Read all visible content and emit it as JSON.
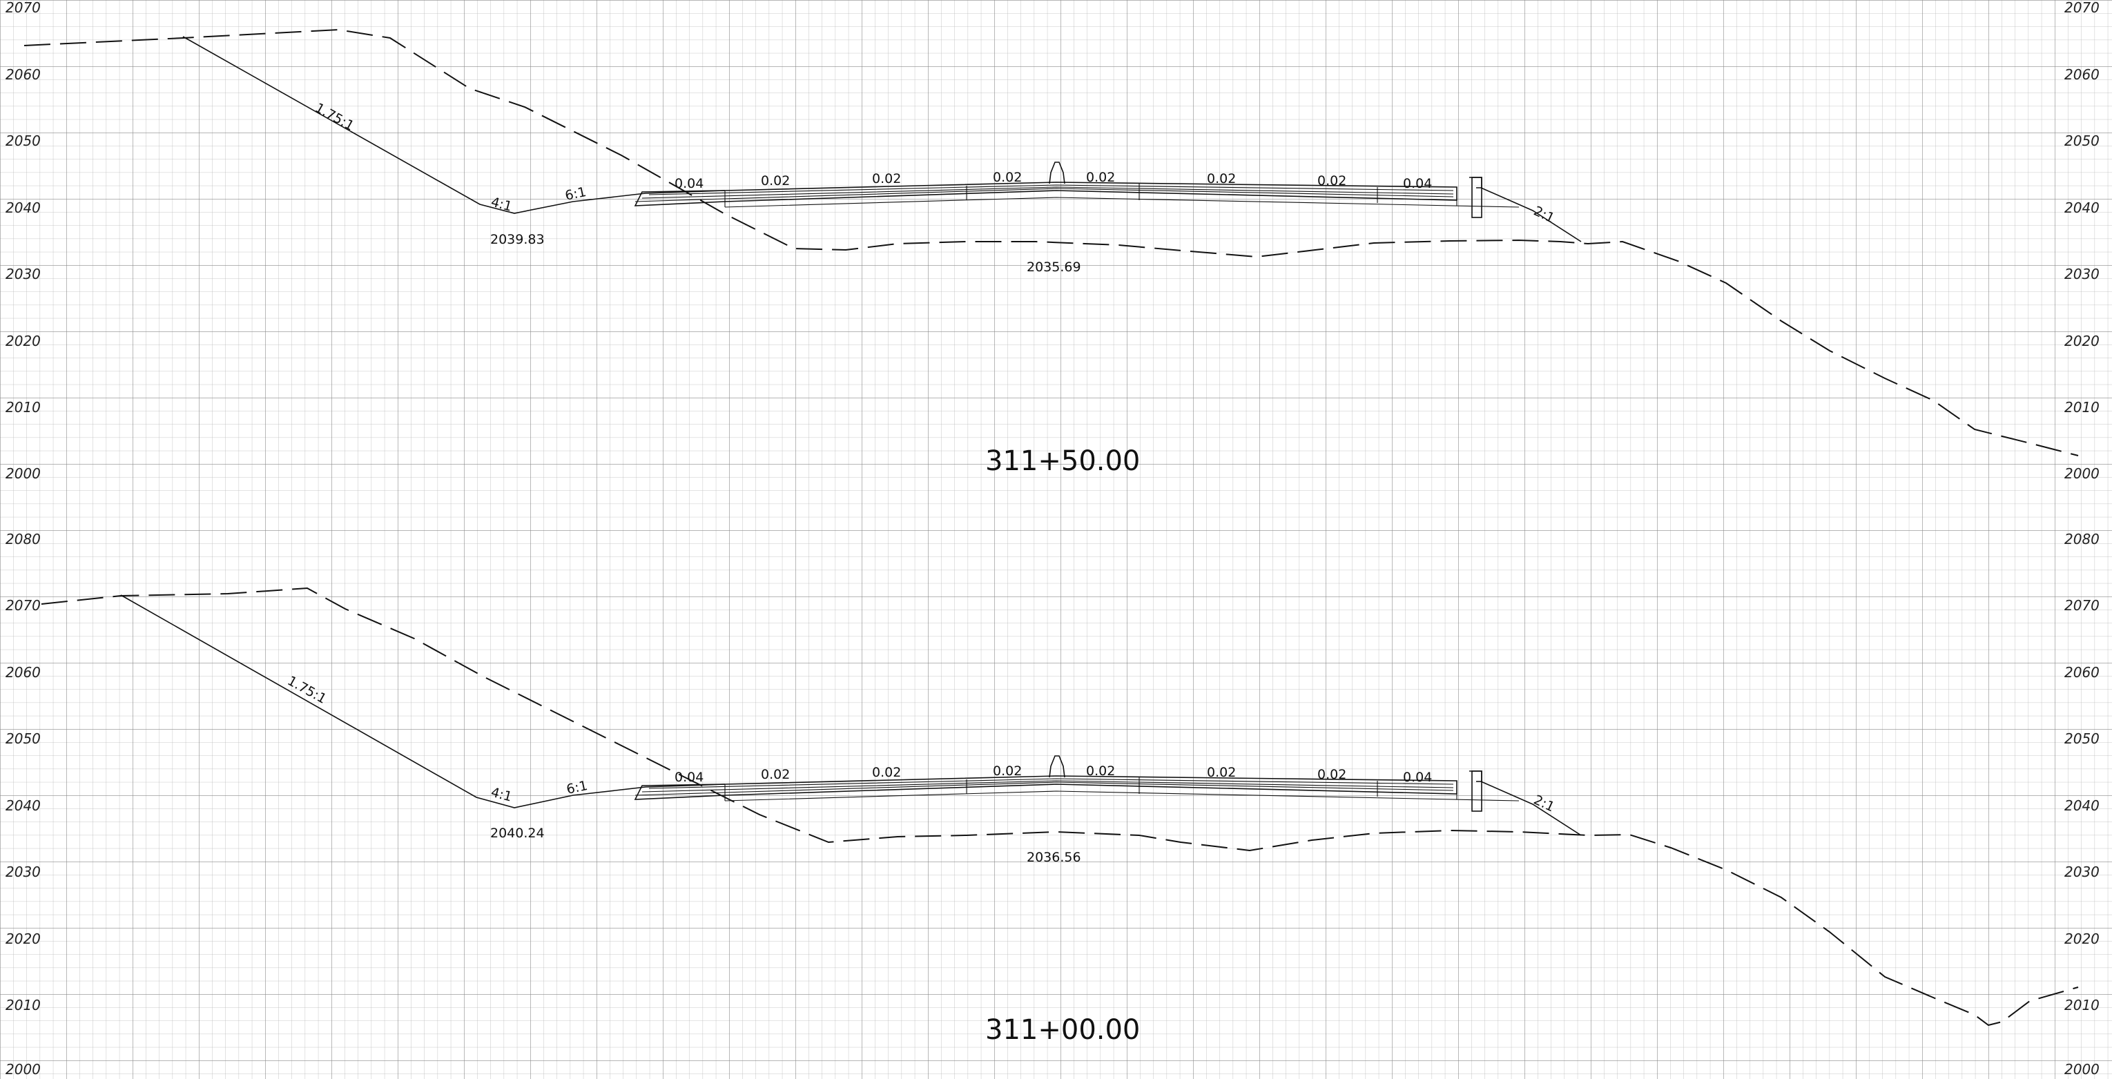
{
  "sheet": {
    "grid_color": "#9a9a9a",
    "line_color": "#111111",
    "background": "#ffffff"
  },
  "sections": [
    {
      "station": "311+50.00",
      "elevation_labels_left": [
        "2070",
        "2060",
        "2050",
        "2040",
        "2030",
        "2020",
        "2010",
        "2000"
      ],
      "elevation_labels_right": [
        "2070",
        "2060",
        "2050",
        "2040",
        "2030",
        "2020",
        "2010",
        "2000"
      ],
      "slope_labels": [
        "1.75:1",
        "4:1",
        "6:1",
        "2:1"
      ],
      "cross_slopes": [
        "0.04",
        "0.02",
        "0.02",
        "0.02",
        "0.02",
        "0.02",
        "0.02",
        "0.04"
      ],
      "ditch_elevation": "2039.83",
      "ground_low_elevation": "2035.69"
    },
    {
      "station": "311+00.00",
      "elevation_labels_left": [
        "2080",
        "2070",
        "2060",
        "2050",
        "2040",
        "2030",
        "2020",
        "2010",
        "2000"
      ],
      "elevation_labels_right": [
        "2080",
        "2070",
        "2060",
        "2050",
        "2040",
        "2030",
        "2020",
        "2010",
        "2000"
      ],
      "slope_labels": [
        "1.75:1",
        "4:1",
        "6:1",
        "2:1"
      ],
      "cross_slopes": [
        "0.04",
        "0.02",
        "0.02",
        "0.02",
        "0.02",
        "0.02",
        "0.02",
        "0.04"
      ],
      "ditch_elevation": "2040.24",
      "ground_low_elevation": "2036.56"
    }
  ]
}
